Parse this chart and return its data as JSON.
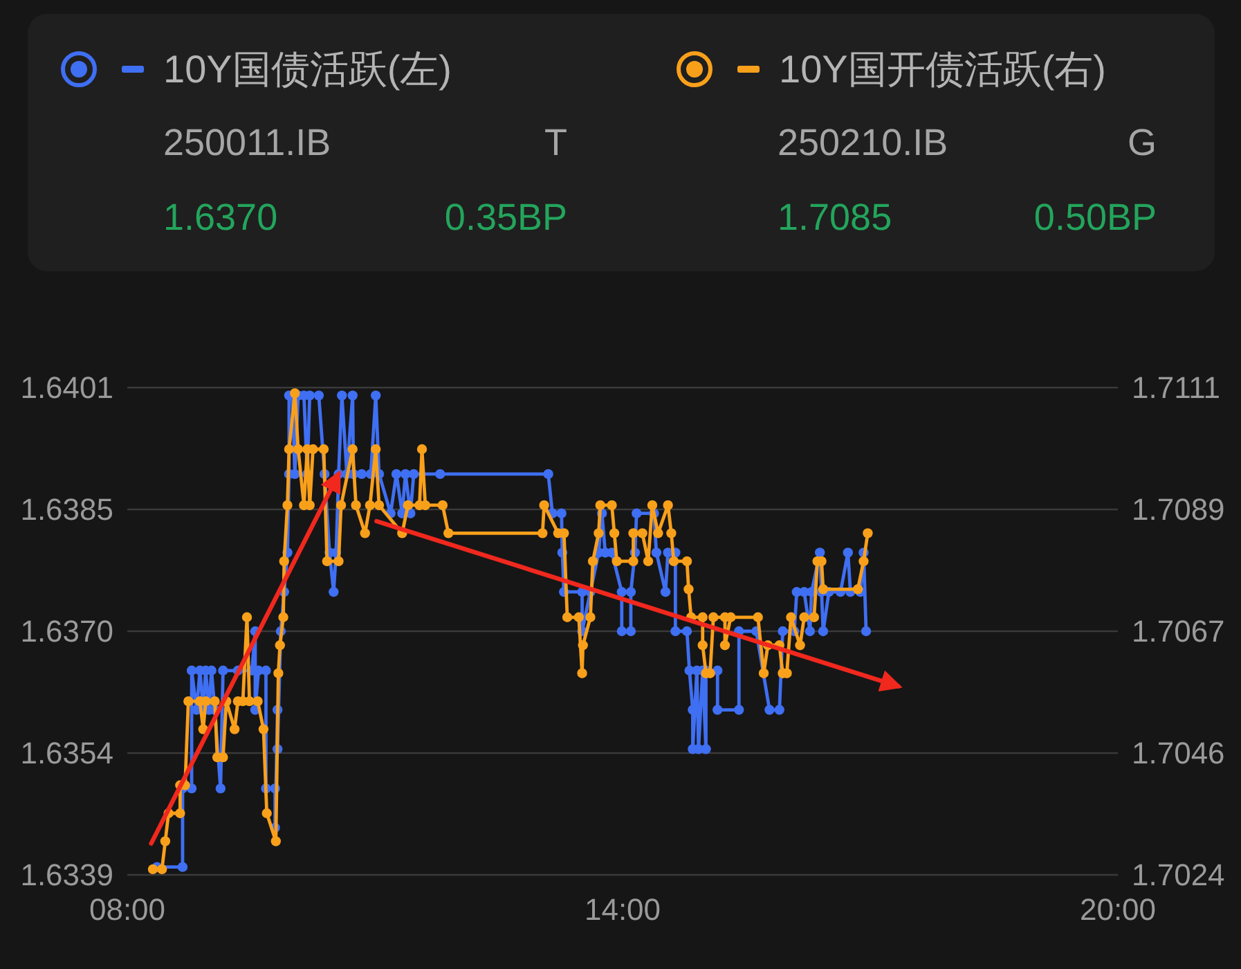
{
  "chart_data": {
    "type": "line",
    "legend": "top",
    "grid": "y",
    "marker": "circle",
    "annotations": [
      "250011.IB",
      "T",
      "1.6370",
      "0.35BP",
      "250210.IB",
      "G",
      "1.7085",
      "0.50BP"
    ],
    "xlim": [
      8,
      20
    ],
    "xticks": [
      {
        "value": 8,
        "label": "08:00"
      },
      {
        "value": 14,
        "label": "14:00"
      },
      {
        "value": 20,
        "label": "20:00"
      }
    ],
    "ylim": [
      1.6339,
      1.6401
    ],
    "yticks": [
      1.6339,
      {
        "value": 1.63545,
        "label": "1.6354"
      },
      {
        "value": 1.637,
        "label": "1.6370"
      },
      {
        "value": 1.63855,
        "label": "1.6385"
      },
      1.6401
    ],
    "y2lim": [
      1.7024,
      1.7111
    ],
    "y2ticks": [
      1.7024,
      {
        "value": 1.70458,
        "label": "1.7046"
      },
      {
        "value": 1.70675,
        "label": "1.7067"
      },
      {
        "value": 1.70893,
        "label": "1.7089"
      },
      1.7111
    ],
    "series": [
      {
        "name": "10Y国债活跃(左)",
        "color": "#3f6ff2",
        "x": [
          8.36,
          8.67,
          8.67,
          8.78,
          8.78,
          8.84,
          8.88,
          8.92,
          8.95,
          8.99,
          9.02,
          9.06,
          9.13,
          9.16,
          9.34,
          9.51,
          9.55,
          9.55,
          9.59,
          9.68,
          9.68,
          9.79,
          9.79,
          9.82,
          9.82,
          9.86,
          9.9,
          9.94,
          9.96,
          9.96,
          10.0,
          10.03,
          10.07,
          10.14,
          10.18,
          10.21,
          10.32,
          10.39,
          10.45,
          10.5,
          10.53,
          10.56,
          10.6,
          10.66,
          10.73,
          10.74,
          10.84,
          10.95,
          11.01,
          11.05,
          11.19,
          11.26,
          11.33,
          11.37,
          11.43,
          11.47,
          11.79,
          13.1,
          13.15,
          13.26,
          13.27,
          13.29,
          13.51,
          13.51,
          13.61,
          13.71,
          13.75,
          13.79,
          13.87,
          13.99,
          13.99,
          14.1,
          14.1,
          14.15,
          14.17,
          14.38,
          14.41,
          14.52,
          14.55,
          14.64,
          14.64,
          14.78,
          14.81,
          14.85,
          14.85,
          14.9,
          14.92,
          14.97,
          15.01,
          15.01,
          15.15,
          15.15,
          15.41,
          15.41,
          15.62,
          15.78,
          15.9,
          15.94,
          16.08,
          16.11,
          16.2,
          16.27,
          16.29,
          16.39,
          16.41,
          16.43,
          16.5,
          16.64,
          16.73,
          16.76,
          16.88,
          16.92,
          16.95
        ],
        "values": [
          1.634,
          1.634,
          1.635,
          1.635,
          1.6365,
          1.636,
          1.6365,
          1.636,
          1.6365,
          1.636,
          1.6365,
          1.636,
          1.635,
          1.6365,
          1.6365,
          1.6365,
          1.637,
          1.636,
          1.6365,
          1.6365,
          1.635,
          1.635,
          1.6345,
          1.636,
          1.6355,
          1.637,
          1.6375,
          1.638,
          1.639,
          1.64,
          1.64,
          1.639,
          1.64,
          1.64,
          1.639,
          1.64,
          1.64,
          1.639,
          1.638,
          1.6375,
          1.638,
          1.639,
          1.64,
          1.639,
          1.64,
          1.639,
          1.639,
          1.639,
          1.64,
          1.639,
          1.6385,
          1.639,
          1.6385,
          1.639,
          1.6385,
          1.639,
          1.639,
          1.639,
          1.6385,
          1.6385,
          1.638,
          1.6375,
          1.6375,
          1.637,
          1.6375,
          1.638,
          1.6385,
          1.638,
          1.638,
          1.6375,
          1.637,
          1.637,
          1.6375,
          1.638,
          1.6385,
          1.6385,
          1.638,
          1.6375,
          1.638,
          1.638,
          1.637,
          1.637,
          1.6365,
          1.636,
          1.6355,
          1.6365,
          1.6355,
          1.6365,
          1.6355,
          1.6365,
          1.6365,
          1.636,
          1.636,
          1.637,
          1.637,
          1.636,
          1.636,
          1.637,
          1.637,
          1.6375,
          1.6375,
          1.637,
          1.6375,
          1.638,
          1.6375,
          1.637,
          1.6375,
          1.6375,
          1.638,
          1.6375,
          1.6375,
          1.638,
          1.637
        ]
      },
      {
        "name": "10Y国开债活跃(右)",
        "color": "#f9a01b",
        "axis": "y2",
        "x": [
          8.31,
          8.42,
          8.46,
          8.5,
          8.64,
          8.64,
          8.7,
          8.74,
          8.88,
          8.92,
          8.95,
          9.06,
          9.09,
          9.16,
          9.2,
          9.3,
          9.34,
          9.4,
          9.45,
          9.48,
          9.58,
          9.65,
          9.69,
          9.8,
          9.83,
          9.85,
          9.89,
          9.9,
          9.94,
          9.96,
          10.03,
          10.07,
          10.14,
          10.18,
          10.21,
          10.25,
          10.38,
          10.42,
          10.56,
          10.59,
          10.73,
          10.77,
          10.88,
          10.94,
          11.01,
          11.05,
          11.33,
          11.4,
          11.54,
          11.57,
          11.61,
          11.82,
          11.89,
          13.03,
          13.05,
          13.22,
          13.29,
          13.33,
          13.47,
          13.51,
          13.52,
          13.61,
          13.64,
          13.71,
          13.73,
          13.87,
          13.9,
          13.93,
          14.13,
          14.13,
          14.24,
          14.31,
          14.36,
          14.43,
          14.55,
          14.59,
          14.62,
          14.78,
          14.8,
          14.83,
          14.97,
          14.97,
          15.01,
          15.06,
          15.1,
          15.24,
          15.24,
          15.31,
          15.64,
          15.71,
          15.76,
          15.9,
          15.94,
          15.99,
          16.04,
          16.15,
          16.2,
          16.32,
          16.36,
          16.41,
          16.43,
          16.85,
          16.92,
          16.97
        ],
        "values": [
          1.7025,
          1.7025,
          1.703,
          1.7035,
          1.7035,
          1.704,
          1.704,
          1.7055,
          1.7055,
          1.705,
          1.7055,
          1.7055,
          1.7045,
          1.7045,
          1.7055,
          1.705,
          1.7055,
          1.7055,
          1.707,
          1.7055,
          1.7055,
          1.705,
          1.7035,
          1.703,
          1.706,
          1.7065,
          1.707,
          1.708,
          1.709,
          1.71,
          1.711,
          1.71,
          1.709,
          1.71,
          1.709,
          1.71,
          1.71,
          1.708,
          1.708,
          1.709,
          1.71,
          1.709,
          1.7085,
          1.709,
          1.71,
          1.709,
          1.7085,
          1.709,
          1.709,
          1.71,
          1.709,
          1.709,
          1.7085,
          1.7085,
          1.709,
          1.7085,
          1.7085,
          1.707,
          1.707,
          1.706,
          1.7065,
          1.707,
          1.708,
          1.7085,
          1.709,
          1.709,
          1.7085,
          1.708,
          1.708,
          1.7085,
          1.7085,
          1.708,
          1.709,
          1.7085,
          1.709,
          1.7085,
          1.708,
          1.708,
          1.7075,
          1.707,
          1.707,
          1.7065,
          1.706,
          1.706,
          1.707,
          1.707,
          1.7065,
          1.707,
          1.707,
          1.706,
          1.7065,
          1.7065,
          1.706,
          1.706,
          1.707,
          1.7065,
          1.707,
          1.707,
          1.708,
          1.708,
          1.7075,
          1.7075,
          1.708,
          1.7085
        ]
      },
      {
        "type": "line",
        "color": "#f0281e",
        "marker": "none",
        "x": [
          8.29,
          10.56
        ],
        "values": [
          1.6343,
          1.639
        ]
      },
      {
        "type": "line",
        "color": "#f0281e",
        "marker": "none",
        "x": [
          11.02,
          17.34
        ],
        "values": [
          1.6384,
          1.6363
        ]
      }
    ]
  }
}
